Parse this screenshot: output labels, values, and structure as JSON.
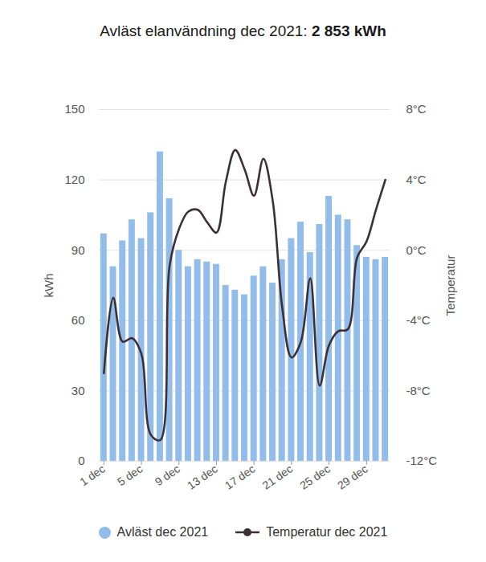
{
  "chart_data": {
    "type": "bar",
    "title": "Avläst elanvändning dec 2021: 2 853 kWh",
    "y_label": "kWh",
    "y2_label": "Temperatur",
    "categories": [
      "1 dec",
      null,
      null,
      null,
      "5 dec",
      null,
      null,
      null,
      "9 dec",
      null,
      null,
      null,
      "13 dec",
      null,
      null,
      null,
      "17 dec",
      null,
      null,
      null,
      "21 dec",
      null,
      null,
      null,
      "25 dec",
      null,
      null,
      null,
      "29 dec",
      null,
      null
    ],
    "series": [
      {
        "name": "Avläst dec 2021",
        "type": "bar",
        "color": "#92bdeb",
        "values": [
          97,
          83,
          94,
          103,
          95,
          106,
          132,
          112,
          90,
          83,
          86,
          85,
          84,
          75,
          73,
          71,
          79,
          83,
          76,
          86,
          95,
          102,
          89,
          101,
          113,
          105,
          103,
          92,
          87,
          86,
          87
        ]
      },
      {
        "name": "Temperatur dec 2021",
        "type": "line",
        "axis": "y2",
        "color": "#3d2f36",
        "values": [
          -7.0,
          -2.7,
          -5.2,
          -5.0,
          -5.9,
          -10.5,
          -10.8,
          -0.9,
          1.2,
          2.2,
          2.3,
          1.6,
          1.0,
          3.9,
          5.7,
          4.6,
          3.1,
          5.2,
          2.8,
          -3.2,
          -6.1,
          -5.2,
          -1.6,
          -7.7,
          -5.4,
          -4.6,
          -4.5,
          -0.4,
          0.5,
          2.3,
          4.0
        ]
      }
    ],
    "ylim": [
      0,
      150
    ],
    "yticks": [
      0,
      30,
      60,
      90,
      120,
      150
    ],
    "y2lim": [
      -12,
      8
    ],
    "y2ticks": [
      {
        "value": -12,
        "label": "-12°C"
      },
      {
        "value": -8,
        "label": "-8°C"
      },
      {
        "value": -4,
        "label": "-4°C"
      },
      {
        "value": 0,
        "label": "0°C"
      },
      {
        "value": 4,
        "label": "4°C"
      },
      {
        "value": 8,
        "label": "8°C"
      }
    ],
    "grid": true,
    "legend": "bottom"
  }
}
